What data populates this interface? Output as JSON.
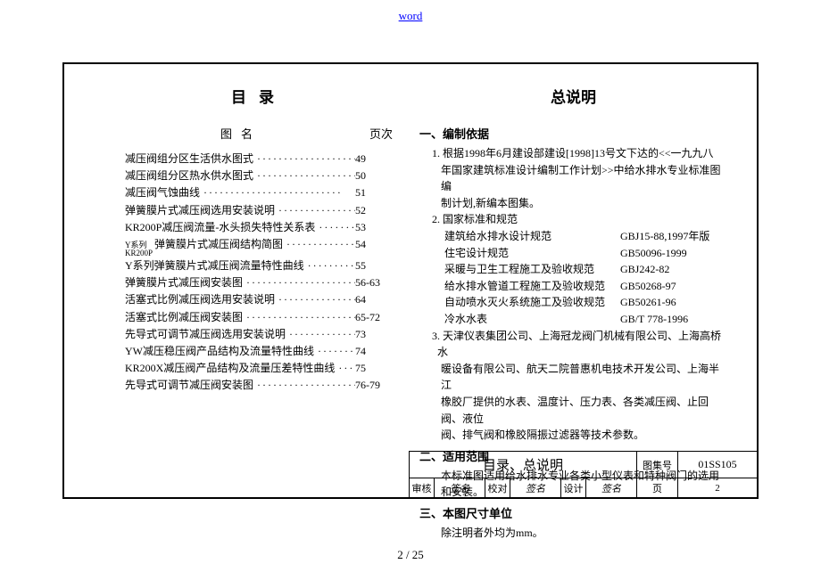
{
  "topLink": "word",
  "pageNumber": "2 / 25",
  "left": {
    "title": "目录",
    "headerName": "图名",
    "headerPage": "页次",
    "rows": [
      {
        "label": "减压阀组分区生活供水图式",
        "page": "49"
      },
      {
        "label": "减压阀组分区热水供水图式",
        "page": "50"
      },
      {
        "label": "减压阀气蚀曲线",
        "page": "51"
      },
      {
        "label": "弹簧膜片式减压阀选用安装说明",
        "page": "52"
      },
      {
        "label": "KR200P减压阀流量-水头损失特性关系表",
        "page": "53"
      },
      {
        "sub": "Y系列\nKR200P",
        "label": "弹簧膜片式减压阀结构简图",
        "page": "54"
      },
      {
        "label": "Y系列弹簧膜片式减压阀流量特性曲线",
        "page": "55"
      },
      {
        "label": "弹簧膜片式减压阀安装图",
        "page": "56-63"
      },
      {
        "label": "活塞式比例减压阀选用安装说明",
        "page": "64"
      },
      {
        "label": "活塞式比例减压阀安装图",
        "page": "65-72"
      },
      {
        "label": "先导式可调节减压阀选用安装说明",
        "page": "73"
      },
      {
        "label": "YW减压稳压阀产品结构及流量特性曲线",
        "page": "74"
      },
      {
        "label": "KR200X减压阀产品结构及流量压差特性曲线",
        "page": "75"
      },
      {
        "label": "先导式可调节减压阀安装图",
        "page": "76-79"
      }
    ]
  },
  "right": {
    "title": "总说明",
    "s1": {
      "h": "一、编制依据",
      "p1a": "1. 根据1998年6月建设部建设[1998]13号文下达的<<一九九八",
      "p1b": "年国家建筑标准设计编制工作计划>>中给水排水专业标准图编",
      "p1c": "制计划,新编本图集。",
      "p2": "2. 国家标准和规范",
      "stds": [
        {
          "n": "建筑给水排水设计规范",
          "c": "GBJ15-88,1997年版"
        },
        {
          "n": "住宅设计规范",
          "c": "GB50096-1999"
        },
        {
          "n": "采暖与卫生工程施工及验收规范",
          "c": "GBJ242-82"
        },
        {
          "n": "给水排水管道工程施工及验收规范",
          "c": "GB50268-97"
        },
        {
          "n": "自动喷水灭火系统施工及验收规范",
          "c": "GB50261-96"
        },
        {
          "n": "冷水水表",
          "c": "GB/T 778-1996"
        }
      ],
      "p3a": "3. 天津仪表集团公司、上海冠龙阀门机械有限公司、上海高桥水",
      "p3b": "暖设备有限公司、航天二院普惠机电技术开发公司、上海半江",
      "p3c": "橡胶厂提供的水表、温度计、压力表、各类减压阀、止回阀、液位",
      "p3d": "阀、排气阀和橡胶隔振过滤器等技术参数。"
    },
    "s2": {
      "h": "二、适用范围",
      "p1": "本标准图适用给水排水专业各类小型仪表和特种阀门的选用",
      "p2": "和安装。"
    },
    "s3": {
      "h": "三、本图尺寸单位",
      "p1": "除注明者外均为mm。"
    }
  },
  "titleBlock": {
    "title": "目录、总说明",
    "setLabel": "图集号",
    "setNo": "01SS105",
    "audit": "审核",
    "auditSig": "签名",
    "check": "校对",
    "checkSig": "签名",
    "design": "设计",
    "designSig": "签名",
    "pageLabel": "页",
    "pageNo": "2"
  }
}
